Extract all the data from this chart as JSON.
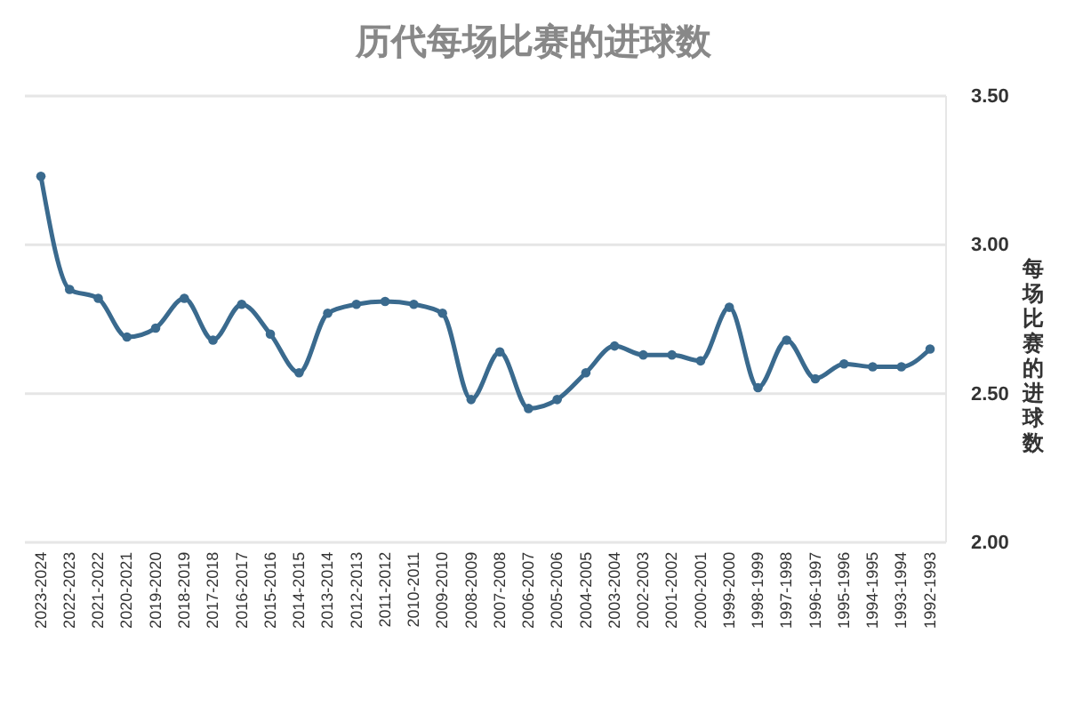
{
  "chart_data": {
    "type": "line",
    "title": "历代每场比赛的进球数",
    "ylabel": "每场比赛的进球数",
    "categories": [
      "2023-2024",
      "2022-2023",
      "2021-2022",
      "2020-2021",
      "2019-2020",
      "2018-2019",
      "2017-2018",
      "2016-2017",
      "2015-2016",
      "2014-2015",
      "2013-2014",
      "2012-2013",
      "2011-2012",
      "2010-2011",
      "2009-2010",
      "2008-2009",
      "2007-2008",
      "2006-2007",
      "2005-2006",
      "2004-2005",
      "2003-2004",
      "2002-2003",
      "2001-2002",
      "2000-2001",
      "1999-2000",
      "1998-1999",
      "1997-1998",
      "1996-1997",
      "1995-1996",
      "1994-1995",
      "1993-1994",
      "1992-1993"
    ],
    "series": [
      {
        "color": "#3a6a8e",
        "values": [
          3.23,
          2.85,
          2.82,
          2.69,
          2.72,
          2.82,
          2.68,
          2.8,
          2.7,
          2.57,
          2.77,
          2.8,
          2.81,
          2.8,
          2.77,
          2.48,
          2.64,
          2.45,
          2.48,
          2.57,
          2.66,
          2.63,
          2.63,
          2.61,
          2.79,
          2.52,
          2.68,
          2.55,
          2.6,
          2.59,
          2.59,
          2.65
        ]
      }
    ],
    "ylim": [
      2,
      3.5
    ],
    "yticks": [
      {
        "value": 2,
        "label": "2.00"
      },
      {
        "value": 2.5,
        "label": "2.50"
      },
      {
        "value": 3,
        "label": "3.00"
      },
      {
        "value": 3.5,
        "label": "3.50"
      }
    ],
    "grid": "y",
    "marker": "circle",
    "line_style": "solid"
  }
}
